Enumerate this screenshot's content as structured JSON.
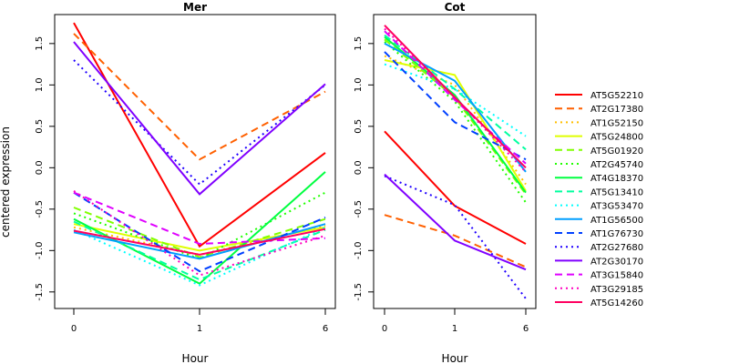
{
  "chart_data": {
    "type": "line",
    "ylabel": "centered expression",
    "shared_xlabel": "Hour",
    "x_categories": [
      "0",
      "1",
      "6"
    ],
    "ylim": [
      -1.7,
      1.85
    ],
    "yticks": [
      -1.5,
      -1.0,
      -0.5,
      0.0,
      0.5,
      1.0,
      1.5
    ],
    "ytick_labels": [
      "-1.5",
      "-1.0",
      "-0.5",
      "0.0",
      "0.5",
      "1.0",
      "1.5"
    ],
    "legend_position": "right",
    "series_styles": [
      {
        "name": "AT5G52210",
        "color": "#ff0000",
        "dash": "solid"
      },
      {
        "name": "AT2G17380",
        "color": "#ff6000",
        "dash": "dashed"
      },
      {
        "name": "AT1G52150",
        "color": "#ffbf00",
        "dash": "dotted"
      },
      {
        "name": "AT5G24800",
        "color": "#dfff00",
        "dash": "solid"
      },
      {
        "name": "AT5G01920",
        "color": "#80ff00",
        "dash": "dashed"
      },
      {
        "name": "AT2G45740",
        "color": "#20ff00",
        "dash": "dotted"
      },
      {
        "name": "AT4G18370",
        "color": "#00ff40",
        "dash": "solid"
      },
      {
        "name": "AT5G13410",
        "color": "#00ff9f",
        "dash": "dashed"
      },
      {
        "name": "AT3G53470",
        "color": "#00ffff",
        "dash": "dotted"
      },
      {
        "name": "AT1G56500",
        "color": "#009fff",
        "dash": "solid"
      },
      {
        "name": "AT1G76730",
        "color": "#0040ff",
        "dash": "dashed"
      },
      {
        "name": "AT2G27680",
        "color": "#2000ff",
        "dash": "dotted"
      },
      {
        "name": "AT2G30170",
        "color": "#8000ff",
        "dash": "solid"
      },
      {
        "name": "AT3G15840",
        "color": "#df00ff",
        "dash": "dashed"
      },
      {
        "name": "AT3G29185",
        "color": "#ff00bf",
        "dash": "dotted"
      },
      {
        "name": "AT5G14260",
        "color": "#ff0060",
        "dash": "solid"
      }
    ],
    "panels": [
      {
        "title": "Mer",
        "xlabel": "Hour",
        "series": [
          {
            "name": "AT5G52210",
            "values": [
              1.75,
              -0.95,
              0.18
            ]
          },
          {
            "name": "AT2G17380",
            "values": [
              1.62,
              0.1,
              0.92
            ]
          },
          {
            "name": "AT1G52150",
            "values": [
              -0.72,
              -1.05,
              -0.7
            ]
          },
          {
            "name": "AT5G24800",
            "values": [
              -0.68,
              -1.0,
              -0.72
            ]
          },
          {
            "name": "AT5G01920",
            "values": [
              -0.48,
              -1.08,
              -0.62
            ]
          },
          {
            "name": "AT2G45740",
            "values": [
              -0.55,
              -1.1,
              -0.3
            ]
          },
          {
            "name": "AT4G18370",
            "values": [
              -0.62,
              -1.4,
              -0.05
            ]
          },
          {
            "name": "AT5G13410",
            "values": [
              -0.65,
              -1.35,
              -0.75
            ]
          },
          {
            "name": "AT3G53470",
            "values": [
              -0.75,
              -1.42,
              -0.72
            ]
          },
          {
            "name": "AT1G56500",
            "values": [
              -0.78,
              -1.1,
              -0.68
            ]
          },
          {
            "name": "AT1G76730",
            "values": [
              -0.3,
              -1.25,
              -0.6
            ]
          },
          {
            "name": "AT2G27680",
            "values": [
              1.3,
              -0.2,
              1.0
            ]
          },
          {
            "name": "AT2G30170",
            "values": [
              1.52,
              -0.32,
              1.01
            ]
          },
          {
            "name": "AT3G15840",
            "values": [
              -0.3,
              -0.92,
              -0.85
            ]
          },
          {
            "name": "AT3G29185",
            "values": [
              -0.28,
              -1.3,
              -0.82
            ]
          },
          {
            "name": "AT5G14260",
            "values": [
              -0.76,
              -1.05,
              -0.74
            ]
          }
        ]
      },
      {
        "title": "Cot",
        "xlabel": "Hour",
        "series": [
          {
            "name": "AT5G52210",
            "values": [
              0.44,
              -0.46,
              -0.92
            ]
          },
          {
            "name": "AT2G17380",
            "values": [
              -0.57,
              -0.82,
              -1.2
            ]
          },
          {
            "name": "AT1G52150",
            "values": [
              1.35,
              1.0,
              -0.2
            ]
          },
          {
            "name": "AT5G24800",
            "values": [
              1.3,
              1.12,
              -0.28
            ]
          },
          {
            "name": "AT5G01920",
            "values": [
              1.55,
              0.85,
              -0.32
            ]
          },
          {
            "name": "AT2G45740",
            "values": [
              1.52,
              0.8,
              -0.42
            ]
          },
          {
            "name": "AT4G18370",
            "values": [
              1.58,
              0.88,
              -0.3
            ]
          },
          {
            "name": "AT5G13410",
            "values": [
              1.6,
              0.95,
              0.22
            ]
          },
          {
            "name": "AT3G53470",
            "values": [
              1.25,
              0.95,
              0.38
            ]
          },
          {
            "name": "AT1G56500",
            "values": [
              1.5,
              1.05,
              -0.05
            ]
          },
          {
            "name": "AT1G76730",
            "values": [
              1.4,
              0.55,
              0.1
            ]
          },
          {
            "name": "AT2G27680",
            "values": [
              -0.1,
              -0.45,
              -1.58
            ]
          },
          {
            "name": "AT2G30170",
            "values": [
              -0.08,
              -0.88,
              -1.23
            ]
          },
          {
            "name": "AT3G15840",
            "values": [
              1.65,
              0.82,
              0.05
            ]
          },
          {
            "name": "AT3G29185",
            "values": [
              1.68,
              0.85,
              -0.05
            ]
          },
          {
            "name": "AT5G14260",
            "values": [
              1.72,
              0.85,
              0.0
            ]
          }
        ]
      }
    ]
  }
}
